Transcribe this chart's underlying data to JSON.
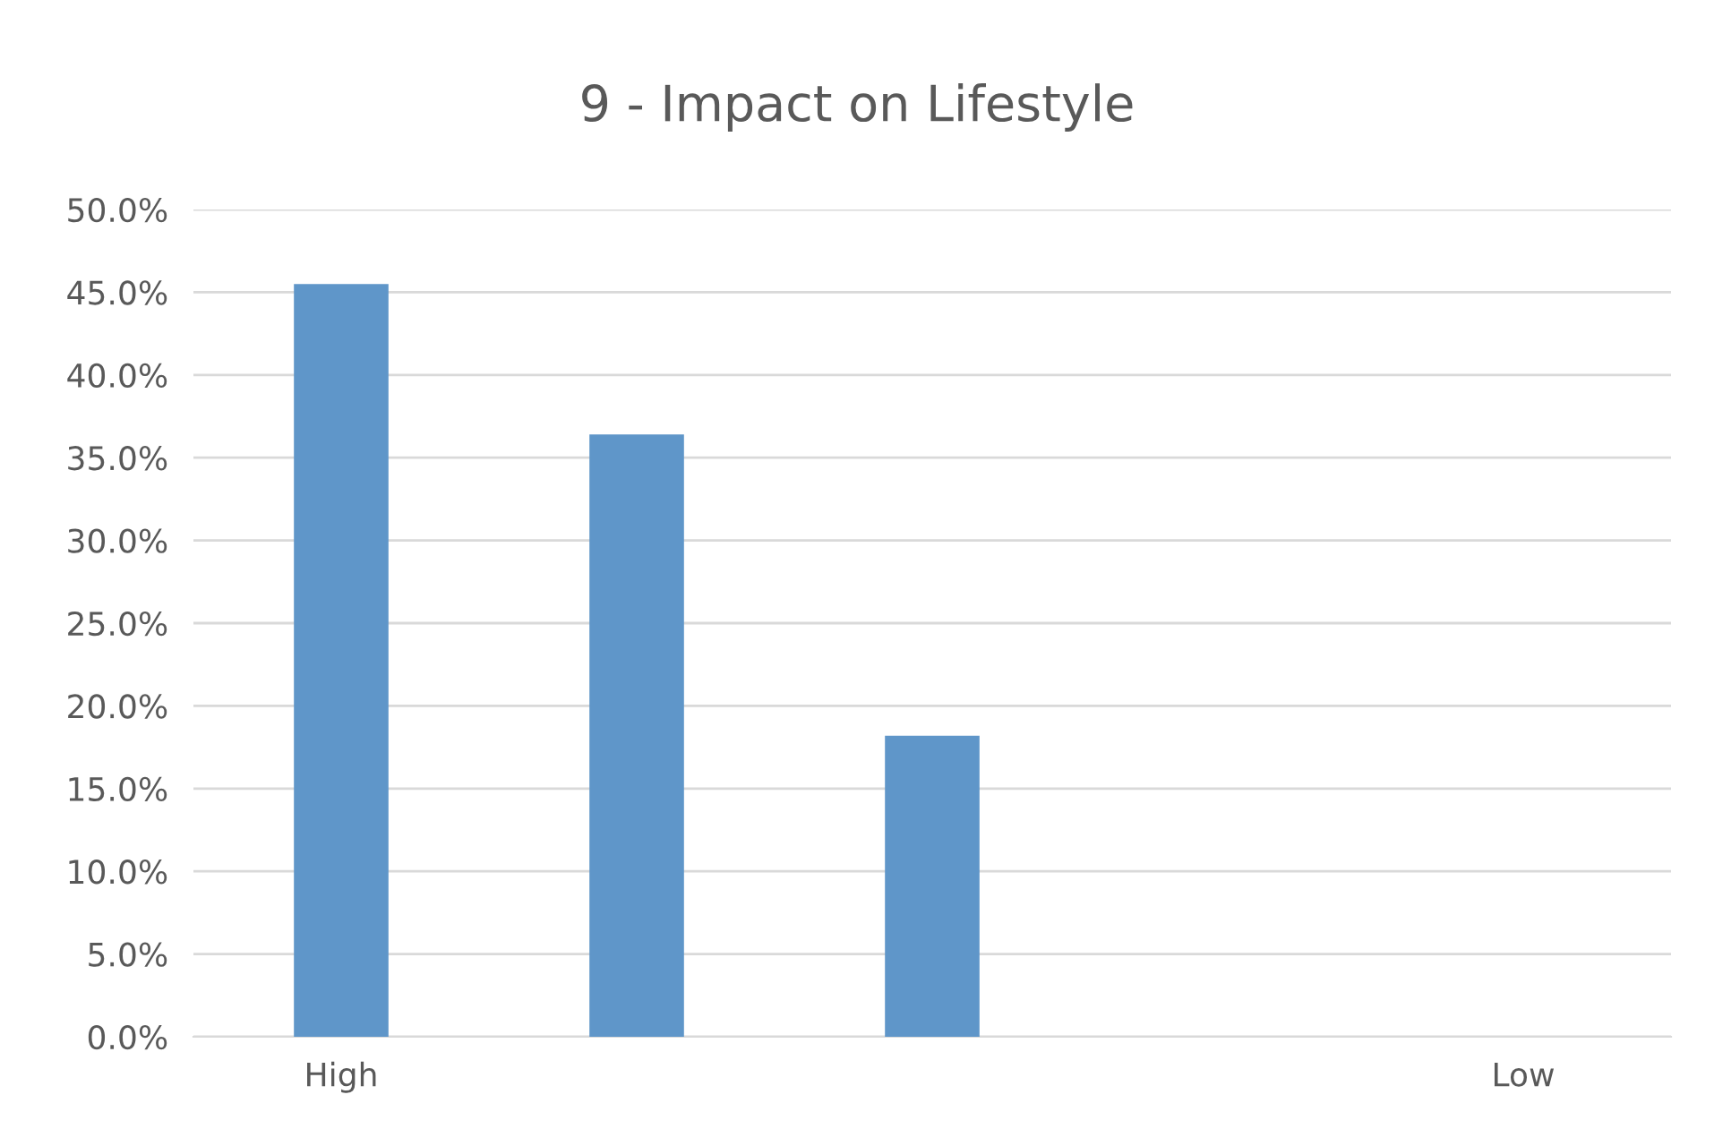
{
  "chart_data": {
    "type": "bar",
    "title": "9 - Impact on Lifestyle",
    "categories": [
      "High",
      null,
      null,
      null,
      "Low"
    ],
    "values": [
      45.5,
      36.4,
      18.2,
      0,
      0
    ],
    "color": "#5f96c9",
    "ylim": [
      0,
      50
    ],
    "yticks": [
      {
        "value": 0,
        "label": "0.0%"
      },
      {
        "value": 5,
        "label": "5.0%"
      },
      {
        "value": 10,
        "label": "10.0%"
      },
      {
        "value": 15,
        "label": "15.0%"
      },
      {
        "value": 20,
        "label": "20.0%"
      },
      {
        "value": 25,
        "label": "25.0%"
      },
      {
        "value": 30,
        "label": "30.0%"
      },
      {
        "value": 35,
        "label": "35.0%"
      },
      {
        "value": 40,
        "label": "40.0%"
      },
      {
        "value": 45,
        "label": "45.0%"
      },
      {
        "value": 50,
        "label": "50.0%"
      }
    ],
    "grid": "y",
    "legend": false
  }
}
